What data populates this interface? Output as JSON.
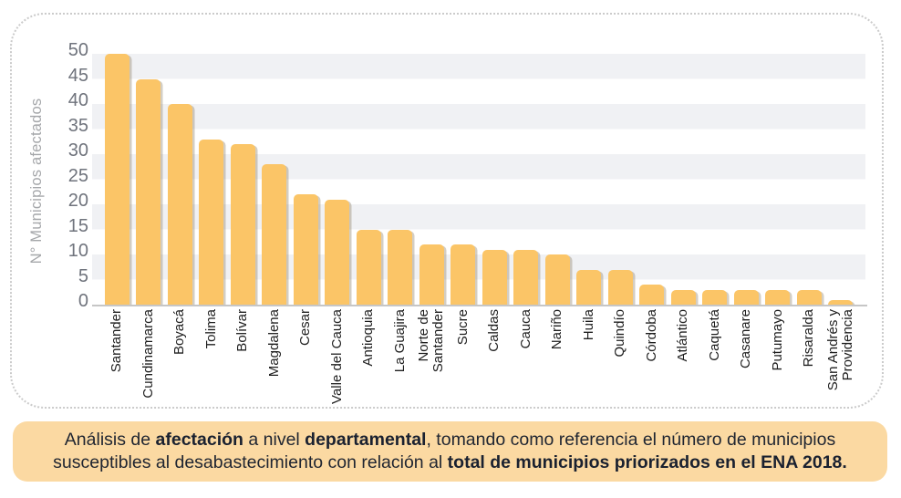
{
  "chart_data": {
    "type": "bar",
    "title": "",
    "xlabel": "",
    "ylabel": "N° Municipios afectados",
    "ylim": [
      0,
      50
    ],
    "yticks": [
      0,
      5,
      10,
      15,
      20,
      25,
      30,
      35,
      40,
      45,
      50
    ],
    "grid": "alternating horizontal gray bands every 5 units",
    "legend_position": "none",
    "bar_color": "#fbc567",
    "band_color": "#f0f1f4",
    "categories": [
      "Santander",
      "Cundinamarca",
      "Boyacá",
      "Tolima",
      "Bolívar",
      "Magdalena",
      "Cesar",
      "Valle del Cauca",
      "Antioquia",
      "La Guajira",
      "Norte de\nSantander",
      "Sucre",
      "Caldas",
      "Cauca",
      "Nariño",
      "Huila",
      "Quindío",
      "Córdoba",
      "Atlántico",
      "Caquetá",
      "Casanare",
      "Putumayo",
      "Risaralda",
      "San Andrés y\nProvidencia"
    ],
    "values": [
      50,
      45,
      40,
      33,
      32,
      28,
      22,
      21,
      15,
      15,
      12,
      12,
      11,
      11,
      10,
      7,
      7,
      4,
      3,
      3,
      3,
      3,
      3,
      1
    ]
  },
  "caption": {
    "background": "#fbd9a2",
    "parts": [
      "Análisis de ",
      "afectación",
      " a nivel ",
      "departamental",
      ", tomando como referencia el número de municipios susceptibles al desabastecimiento con relación al ",
      "total de municipios priorizados en el ENA 2018."
    ]
  },
  "colors": {
    "tick_label": "#6f737c",
    "axis_title": "#a5a7aa",
    "x_label": "#1e1e1e",
    "axis_line": "#c6c6c6",
    "card_border": "#cbcbcb",
    "caption_text": "#1f2531"
  }
}
